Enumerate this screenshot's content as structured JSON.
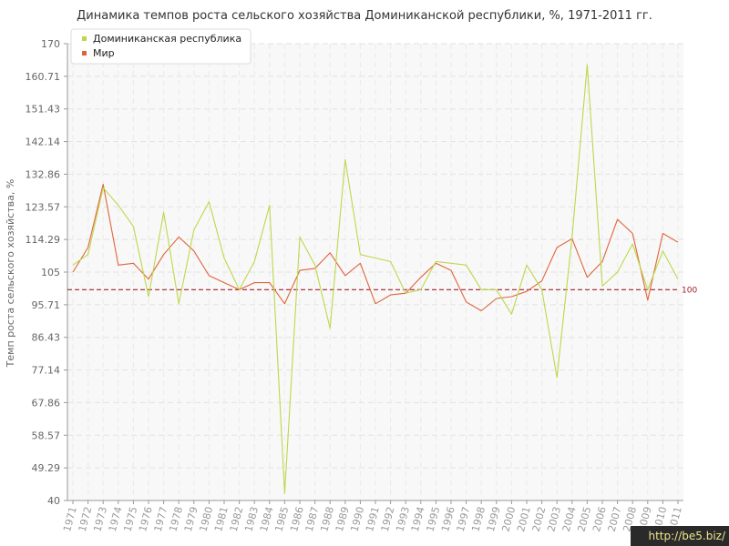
{
  "chart_data": {
    "type": "line",
    "title": "Динамика темпов роста сельского хозяйства Доминиканской республики, %, 1971-2011 гг.",
    "xlabel": "",
    "ylabel": "Темп роста сельского хозяйства, %",
    "ylim": [
      40,
      170
    ],
    "yticks": [
      "40",
      "49.29",
      "58.57",
      "67.86",
      "77.14",
      "86.43",
      "95.71",
      "105",
      "114.29",
      "123.57",
      "132.86",
      "142.14",
      "151.43",
      "160.71",
      "170"
    ],
    "x": [
      "1971",
      "1972",
      "1973",
      "1974",
      "1975",
      "1976",
      "1977",
      "1978",
      "1979",
      "1980",
      "1981",
      "1982",
      "1983",
      "1984",
      "1985",
      "1986",
      "1987",
      "1988",
      "1989",
      "1990",
      "1991",
      "1992",
      "1993",
      "1994",
      "1995",
      "1996",
      "1997",
      "1998",
      "1999",
      "2000",
      "2001",
      "2002",
      "2003",
      "2004",
      "2005",
      "2006",
      "2007",
      "2008",
      "2009",
      "2010",
      "2011"
    ],
    "series": [
      {
        "name": "Доминиканская республика",
        "color": "#bcd84a",
        "values": [
          107,
          110,
          129,
          124,
          118,
          98,
          122,
          96,
          117,
          125,
          109,
          100,
          108,
          124,
          42,
          115,
          107,
          89,
          137,
          110,
          109,
          108,
          99,
          100,
          108,
          107.5,
          107,
          100,
          100,
          93,
          107,
          100,
          75,
          115,
          164,
          101,
          105,
          113,
          100,
          111,
          103
        ]
      },
      {
        "name": "Мир",
        "color": "#e0643a",
        "values": [
          105,
          112,
          130,
          107,
          107.5,
          103,
          110,
          115,
          111,
          104,
          102,
          100,
          102,
          102,
          96,
          105.5,
          106,
          110.5,
          104,
          107.5,
          96,
          98.5,
          99,
          103.5,
          107.5,
          105.5,
          96.5,
          94,
          97.5,
          98,
          99.5,
          102.5,
          112,
          114.5,
          103.5,
          108,
          120,
          116,
          97,
          116,
          113.5
        ]
      }
    ],
    "reference_line": {
      "value": 100,
      "label": "100",
      "color": "#a0202a"
    },
    "grid": true,
    "legend": "top-left"
  },
  "watermark": "http://be5.biz/"
}
